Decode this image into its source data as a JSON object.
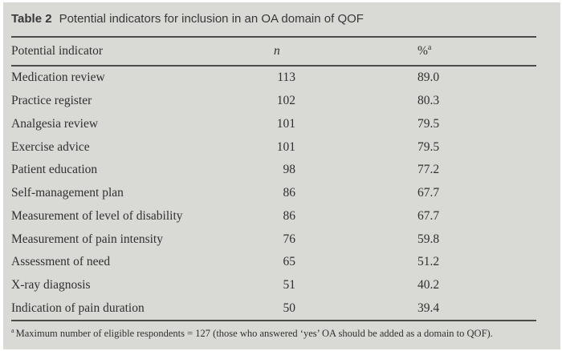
{
  "page": {
    "table_label": "Table 2",
    "title": "Potential indicators for inclusion in an OA domain of QOF"
  },
  "table": {
    "columns": {
      "indicator": "Potential indicator",
      "n": "n",
      "pct": "%",
      "pct_superscript": "a"
    },
    "rows": [
      {
        "indicator": "Medication review",
        "n": "113",
        "pct": "89.0"
      },
      {
        "indicator": "Practice register",
        "n": "102",
        "pct": "80.3"
      },
      {
        "indicator": "Analgesia review",
        "n": "101",
        "pct": "79.5"
      },
      {
        "indicator": "Exercise advice",
        "n": "101",
        "pct": "79.5"
      },
      {
        "indicator": "Patient education",
        "n": "98",
        "pct": "77.2"
      },
      {
        "indicator": "Self-management plan",
        "n": "86",
        "pct": "67.7"
      },
      {
        "indicator": "Measurement of level of disability",
        "n": "86",
        "pct": "67.7"
      },
      {
        "indicator": "Measurement of pain intensity",
        "n": "76",
        "pct": "59.8"
      },
      {
        "indicator": "Assessment of need",
        "n": "65",
        "pct": "51.2"
      },
      {
        "indicator": "X-ray diagnosis",
        "n": "51",
        "pct": "40.2"
      },
      {
        "indicator": "Indication of pain duration",
        "n": "50",
        "pct": "39.4"
      }
    ]
  },
  "footnote": {
    "marker": "a",
    "text": "Maximum number of eligible respondents = 127 (those who answered ‘yes’ OA should be added as a domain to QOF)."
  },
  "colors": {
    "panel_background": "#d9d9d6",
    "rule": "#4c4c4c",
    "text": "#303030",
    "caption_text": "#383838"
  }
}
